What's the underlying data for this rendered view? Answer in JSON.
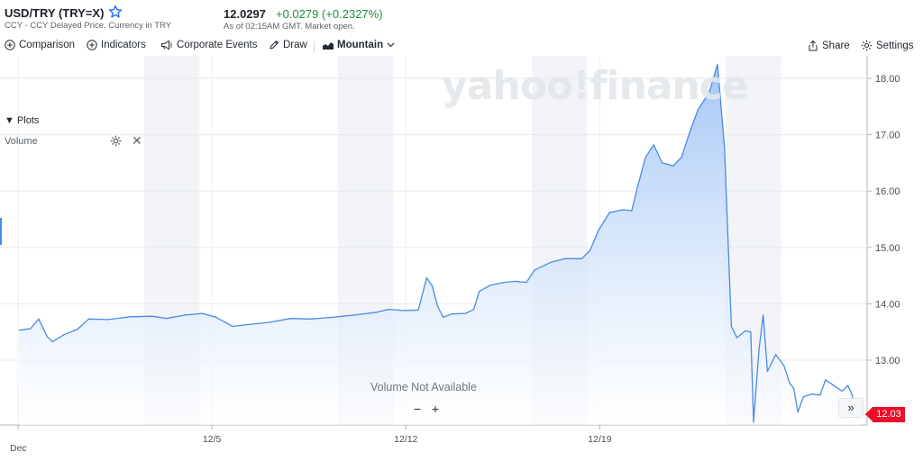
{
  "header": {
    "symbol": "USD/TRY (TRY=X)",
    "subline": "CCY - CCY Delayed Price. Currency in TRY",
    "price": "12.0297",
    "change": "+0.0279 (+0.2327%)",
    "as_of": "As of 02:15AM GMT. Market open."
  },
  "toolbar": {
    "comparison": "Comparison",
    "indicators": "Indicators",
    "corporate_events": "Corporate Events",
    "draw": "Draw",
    "mountain": "Mountain",
    "share": "Share",
    "settings": "Settings"
  },
  "plots": {
    "title": "▼ Plots",
    "volume": "Volume"
  },
  "overlay": {
    "watermark": "yahoo!finance",
    "volume_na": "Volume Not Available",
    "zoom_out": "−",
    "zoom_in": "+",
    "expand": "»",
    "last_price_badge": "12.03"
  },
  "colors": {
    "line": "#4a8ae8",
    "fill_top": "#9fc3f5",
    "fill_bottom": "#ffffff",
    "up": "#1e8e3e",
    "badge": "#eb0f29"
  },
  "chart_data": {
    "type": "area",
    "title": "USD/TRY (TRY=X)",
    "xlabel": "",
    "ylabel": "",
    "x_ticks": [
      "Dec",
      "12/5",
      "12/12",
      "12/19"
    ],
    "y_ticks": [
      "13.00",
      "14.00",
      "15.00",
      "16.00",
      "17.00",
      "18.00"
    ],
    "ylim": [
      11.85,
      18.4
    ],
    "grid": true,
    "series": [
      {
        "name": "USD/TRY",
        "points": [
          [
            0.0,
            13.53
          ],
          [
            0.4,
            13.56
          ],
          [
            0.7,
            13.73
          ],
          [
            1.0,
            13.42
          ],
          [
            1.2,
            13.33
          ],
          [
            1.6,
            13.45
          ],
          [
            2.1,
            13.55
          ],
          [
            2.5,
            13.73
          ],
          [
            3.2,
            13.72
          ],
          [
            4.0,
            13.77
          ],
          [
            4.8,
            13.78
          ],
          [
            5.3,
            13.74
          ],
          [
            6.0,
            13.8
          ],
          [
            6.6,
            13.83
          ],
          [
            7.1,
            13.76
          ],
          [
            7.7,
            13.6
          ],
          [
            8.2,
            13.63
          ],
          [
            9.0,
            13.67
          ],
          [
            9.8,
            13.74
          ],
          [
            10.5,
            13.73
          ],
          [
            11.3,
            13.76
          ],
          [
            12.1,
            13.8
          ],
          [
            12.9,
            13.85
          ],
          [
            13.3,
            13.9
          ],
          [
            13.9,
            13.88
          ],
          [
            14.4,
            13.89
          ],
          [
            14.7,
            14.46
          ],
          [
            14.9,
            14.32
          ],
          [
            15.1,
            13.95
          ],
          [
            15.3,
            13.76
          ],
          [
            15.6,
            13.82
          ],
          [
            16.1,
            13.83
          ],
          [
            16.4,
            13.9
          ],
          [
            16.6,
            14.22
          ],
          [
            17.0,
            14.33
          ],
          [
            17.5,
            14.38
          ],
          [
            17.9,
            14.4
          ],
          [
            18.3,
            14.38
          ],
          [
            18.6,
            14.6
          ],
          [
            19.2,
            14.74
          ],
          [
            19.7,
            14.8
          ],
          [
            20.3,
            14.8
          ],
          [
            20.6,
            14.95
          ],
          [
            20.9,
            15.3
          ],
          [
            21.3,
            15.62
          ],
          [
            21.8,
            15.67
          ],
          [
            22.1,
            15.65
          ],
          [
            22.3,
            16.05
          ],
          [
            22.6,
            16.6
          ],
          [
            22.9,
            16.82
          ],
          [
            23.2,
            16.5
          ],
          [
            23.6,
            16.45
          ],
          [
            23.9,
            16.6
          ],
          [
            24.2,
            17.05
          ],
          [
            24.5,
            17.45
          ],
          [
            24.9,
            17.75
          ],
          [
            25.2,
            18.25
          ],
          [
            25.45,
            16.8
          ],
          [
            25.7,
            13.6
          ],
          [
            25.9,
            13.4
          ],
          [
            26.2,
            13.52
          ],
          [
            26.4,
            13.5
          ],
          [
            26.5,
            11.9
          ],
          [
            26.7,
            13.2
          ],
          [
            26.85,
            13.8
          ],
          [
            27.0,
            12.8
          ],
          [
            27.3,
            13.1
          ],
          [
            27.6,
            12.9
          ],
          [
            27.8,
            12.6
          ],
          [
            27.95,
            12.5
          ],
          [
            28.1,
            12.08
          ],
          [
            28.3,
            12.35
          ],
          [
            28.6,
            12.4
          ],
          [
            28.9,
            12.38
          ],
          [
            29.1,
            12.65
          ],
          [
            29.4,
            12.55
          ],
          [
            29.7,
            12.45
          ],
          [
            29.9,
            12.55
          ],
          [
            30.05,
            12.4
          ],
          [
            30.2,
            12.08
          ],
          [
            30.4,
            12.03
          ]
        ]
      }
    ],
    "last_value": 12.03
  }
}
